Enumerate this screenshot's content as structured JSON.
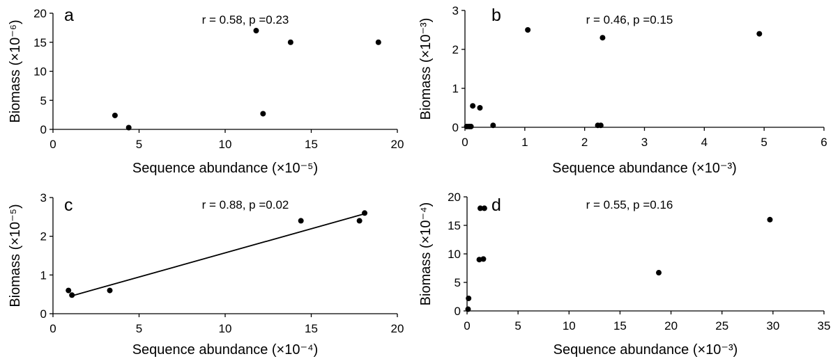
{
  "chart_data": [
    {
      "type": "scatter",
      "panel": "a",
      "stat": "r = 0.58, p =0.23",
      "xlabel": "Sequence abundance (×10⁻⁵)",
      "ylabel": "Biomass (×10⁻⁶)",
      "xlim": [
        0,
        20
      ],
      "ylim": [
        0,
        20
      ],
      "xticks": [
        0,
        5,
        10,
        15,
        20
      ],
      "yticks": [
        0,
        5,
        10,
        15,
        20
      ],
      "x": [
        3.6,
        4.4,
        11.8,
        12.2,
        13.8,
        18.9
      ],
      "y": [
        2.4,
        0.3,
        17.0,
        2.7,
        15.0,
        15.0
      ],
      "trendline": null
    },
    {
      "type": "scatter",
      "panel": "b",
      "stat": "r = 0.46, p =0.15",
      "xlabel": "Sequence abundance (×10⁻³)",
      "ylabel": "Biomass (×10⁻³)",
      "xlim": [
        0,
        6
      ],
      "ylim": [
        0,
        3
      ],
      "xticks": [
        0,
        1,
        2,
        3,
        4,
        5,
        6
      ],
      "yticks": [
        0,
        1,
        2,
        3
      ],
      "x": [
        0.03,
        0.07,
        0.1,
        0.13,
        0.25,
        0.47,
        1.05,
        2.22,
        2.27,
        2.3,
        4.92
      ],
      "y": [
        0.02,
        0.02,
        0.02,
        0.55,
        0.5,
        0.05,
        2.5,
        0.05,
        0.05,
        2.3,
        2.4
      ],
      "trendline": null
    },
    {
      "type": "scatter",
      "panel": "c",
      "stat": "r = 0.88, p =0.02",
      "xlabel": "Sequence abundance (×10⁻⁴)",
      "ylabel": "Biomass (×10⁻⁵)",
      "xlim": [
        0,
        20
      ],
      "ylim": [
        0,
        3
      ],
      "xticks": [
        0,
        5,
        10,
        15,
        20
      ],
      "yticks": [
        0,
        1,
        2,
        3
      ],
      "x": [
        0.9,
        1.1,
        3.3,
        14.4,
        17.8,
        18.1
      ],
      "y": [
        0.6,
        0.48,
        0.6,
        2.4,
        2.4,
        2.6
      ],
      "trendline": {
        "x": [
          1.0,
          18.1
        ],
        "y": [
          0.45,
          2.58
        ]
      }
    },
    {
      "type": "scatter",
      "panel": "d",
      "stat": "r = 0.55, p =0.16",
      "xlabel": "Sequence abundance (×10⁻³)",
      "ylabel": "Biomass (×10⁻⁴)",
      "xlim": [
        0,
        35
      ],
      "ylim": [
        0,
        20
      ],
      "xticks": [
        0,
        5,
        10,
        15,
        20,
        25,
        30,
        35
      ],
      "yticks": [
        0,
        5,
        10,
        15,
        20
      ],
      "x": [
        0.1,
        0.15,
        1.2,
        1.6,
        1.3,
        1.7,
        18.8,
        29.7
      ],
      "y": [
        0.3,
        2.2,
        9.0,
        9.1,
        18.0,
        18.0,
        6.7,
        16.0
      ],
      "trendline": null
    }
  ]
}
